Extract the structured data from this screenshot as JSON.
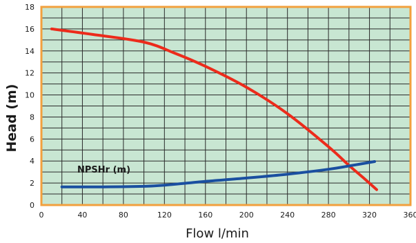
{
  "chart_data": {
    "type": "line",
    "title": "",
    "xlabel": "Flow l/min",
    "ylabel": "Head (m)",
    "xlim": [
      0,
      360
    ],
    "ylim": [
      0,
      18
    ],
    "x_ticks": [
      0,
      40,
      80,
      120,
      160,
      200,
      240,
      280,
      320,
      360
    ],
    "y_ticks": [
      0,
      2,
      4,
      6,
      8,
      10,
      12,
      14,
      16,
      18
    ],
    "grid": true,
    "annotations": [
      "NPSHr (m)"
    ],
    "colors": {
      "plot_background": "#c8e6d2",
      "frame": "#f2a03d",
      "grid": "#2a2a2a"
    },
    "series": [
      {
        "color": "#ec2b1b",
        "x": [
          10,
          50,
          100,
          130,
          160,
          200,
          240,
          280,
          300,
          315,
          327
        ],
        "y": [
          16.0,
          15.5,
          14.8,
          13.8,
          12.6,
          10.7,
          8.3,
          5.3,
          3.6,
          2.4,
          1.4
        ]
      },
      {
        "color": "#1a4fa0",
        "x": [
          20,
          60,
          100,
          120,
          160,
          200,
          240,
          280,
          300,
          325
        ],
        "y": [
          1.65,
          1.65,
          1.7,
          1.8,
          2.15,
          2.45,
          2.8,
          3.25,
          3.55,
          3.95
        ]
      }
    ]
  }
}
